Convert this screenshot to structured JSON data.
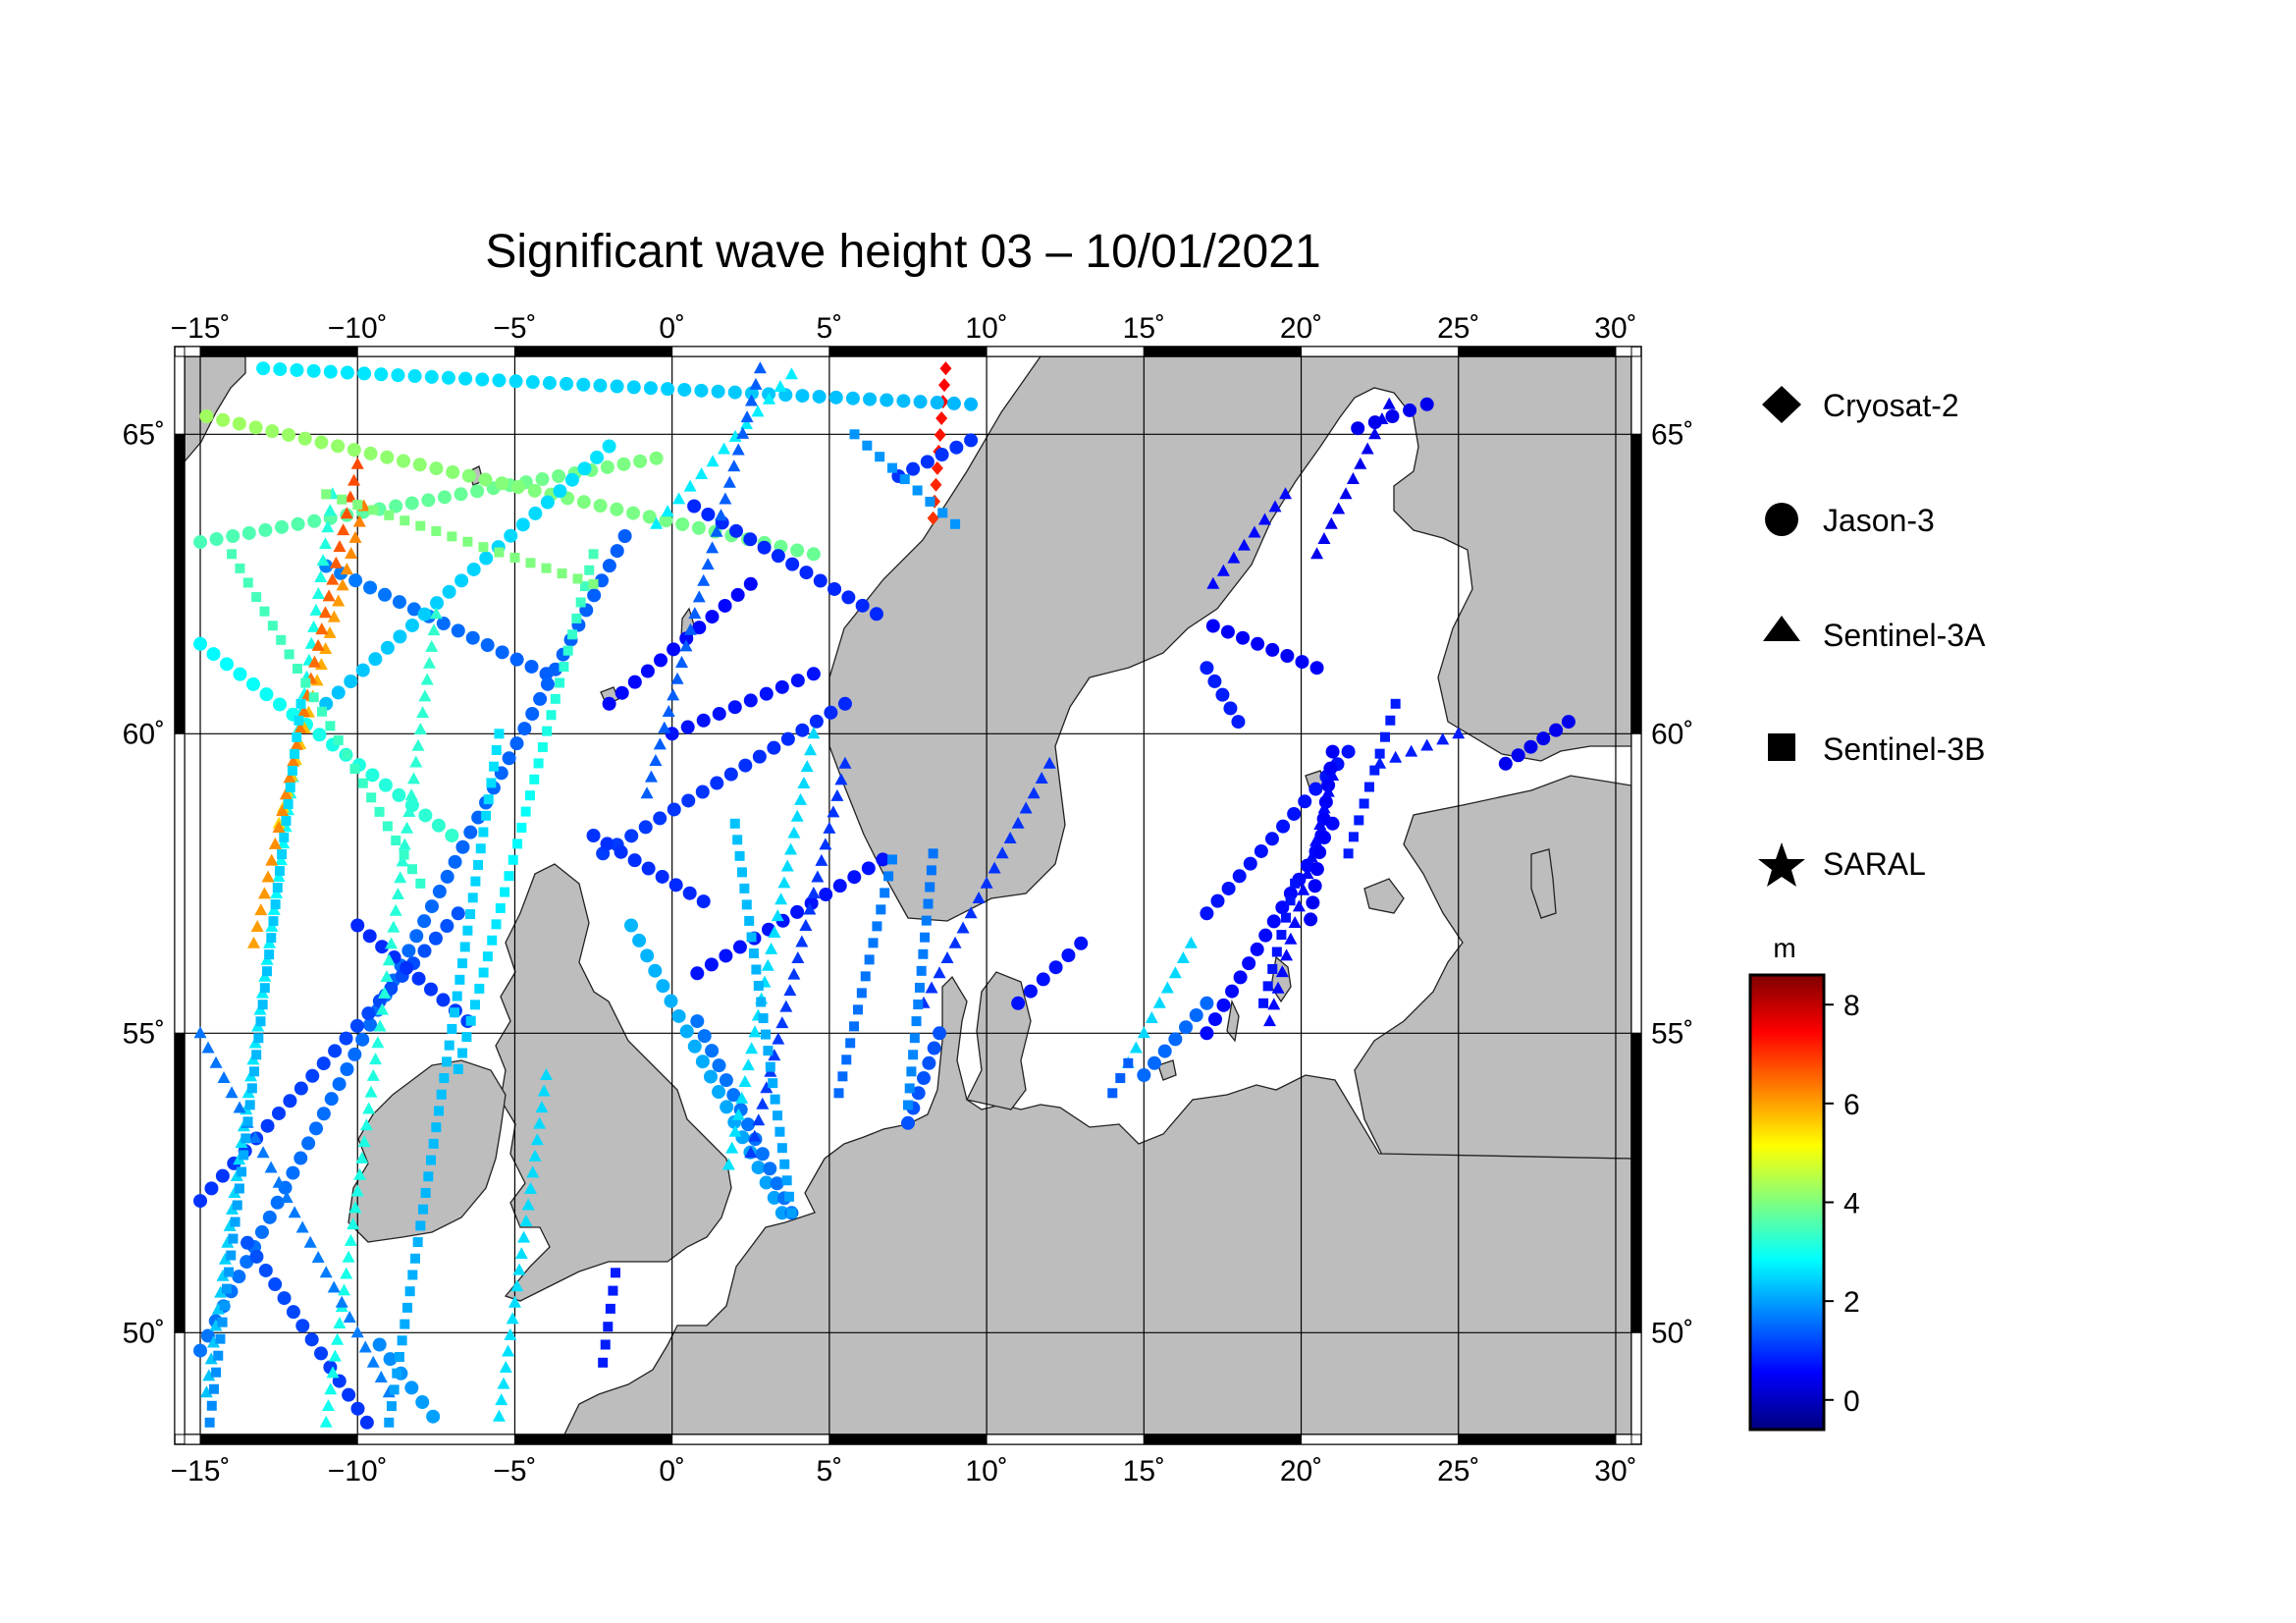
{
  "title": "Significant wave height 03 – 10/01/2021",
  "lon_ticks": [
    {
      "value": -15,
      "label": "−15˚"
    },
    {
      "value": -10,
      "label": "−10˚"
    },
    {
      "value": -5,
      "label": "−5˚"
    },
    {
      "value": 0,
      "label": "0˚"
    },
    {
      "value": 5,
      "label": "5˚"
    },
    {
      "value": 10,
      "label": "10˚"
    },
    {
      "value": 15,
      "label": "15˚"
    },
    {
      "value": 20,
      "label": "20˚"
    },
    {
      "value": 25,
      "label": "25˚"
    },
    {
      "value": 30,
      "label": "30˚"
    }
  ],
  "lat_ticks": [
    {
      "value": 65,
      "label": "65˚"
    },
    {
      "value": 60,
      "label": "60˚"
    },
    {
      "value": 55,
      "label": "55˚"
    },
    {
      "value": 50,
      "label": "50˚"
    }
  ],
  "map_extent": {
    "lon": [
      -15.5,
      30.5
    ],
    "lat": [
      48.3,
      66.3
    ]
  },
  "legend": {
    "items": [
      {
        "label": "Cryosat-2",
        "symbol": "diamond-icon"
      },
      {
        "label": "Jason-3",
        "symbol": "circle-icon"
      },
      {
        "label": "Sentinel-3A",
        "symbol": "triangle-icon"
      },
      {
        "label": "Sentinel-3B",
        "symbol": "square-icon"
      },
      {
        "label": "SARAL",
        "symbol": "star-icon"
      }
    ]
  },
  "colorbar": {
    "unit": "m",
    "min": -0.6,
    "max": 8.6,
    "ticks": [
      {
        "value": 0,
        "label": "0"
      },
      {
        "value": 2,
        "label": "2"
      },
      {
        "value": 4,
        "label": "4"
      },
      {
        "value": 6,
        "label": "6"
      },
      {
        "value": 8,
        "label": "8"
      }
    ],
    "colormap": [
      "#00007f",
      "#0000ff",
      "#007fff",
      "#00ffff",
      "#7fff7f",
      "#ffff00",
      "#ff7f00",
      "#ff0000",
      "#7f0000"
    ]
  },
  "colors": {
    "land": "#bdbdbd",
    "sea": "#ffffff",
    "frame": "#000000",
    "grid": "#000000"
  },
  "tracks": [
    {
      "satellite": "Cryosat-2",
      "from": [
        8.3,
        63.6
      ],
      "to": [
        8.7,
        66.1
      ],
      "hs": [
        7.0,
        7.5
      ]
    },
    {
      "satellite": "Jason-3",
      "from": [
        -15.0,
        61.5
      ],
      "to": [
        -7.0,
        58.3
      ],
      "hs": [
        2.8,
        3.3
      ]
    },
    {
      "satellite": "Jason-3",
      "from": [
        -15.0,
        63.2
      ],
      "to": [
        -0.5,
        64.6
      ],
      "hs": [
        3.5,
        4.0
      ]
    },
    {
      "satellite": "Jason-3",
      "from": [
        -14.8,
        65.3
      ],
      "to": [
        4.5,
        63.0
      ],
      "hs": [
        4.3,
        3.8
      ]
    },
    {
      "satellite": "Jason-3",
      "from": [
        -13.0,
        66.1
      ],
      "to": [
        9.5,
        65.5
      ],
      "hs": [
        2.7,
        2.2
      ]
    },
    {
      "satellite": "Jason-3",
      "from": [
        -11.0,
        62.8
      ],
      "to": [
        -4.0,
        61.0
      ],
      "hs": [
        1.7,
        1.4
      ]
    },
    {
      "satellite": "Jason-3",
      "from": [
        -11.0,
        60.5
      ],
      "to": [
        -2.0,
        64.8
      ],
      "hs": [
        2.3,
        2.6
      ]
    },
    {
      "satellite": "Jason-3",
      "from": [
        -15.0,
        49.7
      ],
      "to": [
        -1.5,
        63.3
      ],
      "hs": [
        1.6,
        1.4
      ]
    },
    {
      "satellite": "Jason-3",
      "from": [
        -15.0,
        52.2
      ],
      "to": [
        -6.8,
        57.0
      ],
      "hs": [
        1.0,
        1.3
      ]
    },
    {
      "satellite": "Jason-3",
      "from": [
        -13.5,
        51.5
      ],
      "to": [
        -9.7,
        48.5
      ],
      "hs": [
        1.3,
        1.0
      ]
    },
    {
      "satellite": "Jason-3",
      "from": [
        -10.0,
        56.8
      ],
      "to": [
        -6.5,
        55.2
      ],
      "hs": [
        0.9,
        1.1
      ]
    },
    {
      "satellite": "Jason-3",
      "from": [
        -9.3,
        49.8
      ],
      "to": [
        -7.6,
        48.6
      ],
      "hs": [
        1.8,
        2.0
      ]
    },
    {
      "satellite": "Jason-3",
      "from": [
        -2.2,
        58.0
      ],
      "to": [
        5.5,
        60.5
      ],
      "hs": [
        1.1,
        0.9
      ]
    },
    {
      "satellite": "Jason-3",
      "from": [
        -1.3,
        56.8
      ],
      "to": [
        3.5,
        52.0
      ],
      "hs": [
        2.2,
        2.0
      ]
    },
    {
      "satellite": "Jason-3",
      "from": [
        0.8,
        55.2
      ],
      "to": [
        3.8,
        52.0
      ],
      "hs": [
        1.6,
        1.6
      ]
    },
    {
      "satellite": "Jason-3",
      "from": [
        -2.5,
        58.3
      ],
      "to": [
        1.0,
        57.2
      ],
      "hs": [
        1.0,
        0.9
      ]
    },
    {
      "satellite": "Jason-3",
      "from": [
        0.8,
        56.0
      ],
      "to": [
        6.7,
        57.9
      ],
      "hs": [
        0.7,
        0.7
      ]
    },
    {
      "satellite": "Jason-3",
      "from": [
        7.5,
        53.5
      ],
      "to": [
        8.5,
        55.0
      ],
      "hs": [
        1.3,
        1.3
      ]
    },
    {
      "satellite": "Jason-3",
      "from": [
        0.7,
        63.8
      ],
      "to": [
        6.5,
        62.0
      ],
      "hs": [
        0.9,
        0.9
      ]
    },
    {
      "satellite": "Jason-3",
      "from": [
        2.5,
        62.5
      ],
      "to": [
        -2.0,
        60.5
      ],
      "hs": [
        0.6,
        0.6
      ]
    },
    {
      "satellite": "Jason-3",
      "from": [
        0.0,
        60.0
      ],
      "to": [
        4.5,
        61.0
      ],
      "hs": [
        0.7,
        0.7
      ]
    },
    {
      "satellite": "Jason-3",
      "from": [
        11.0,
        55.5
      ],
      "to": [
        13.0,
        56.5
      ],
      "hs": [
        0.7,
        0.7
      ]
    },
    {
      "satellite": "Jason-3",
      "from": [
        15.0,
        54.3
      ],
      "to": [
        17.0,
        55.5
      ],
      "hs": [
        1.5,
        1.5
      ]
    },
    {
      "satellite": "Jason-3",
      "from": [
        17.0,
        55.0
      ],
      "to": [
        21.0,
        58.5
      ],
      "hs": [
        0.6,
        0.6
      ]
    },
    {
      "satellite": "Jason-3",
      "from": [
        17.0,
        57.0
      ],
      "to": [
        21.5,
        59.7
      ],
      "hs": [
        0.7,
        0.7
      ]
    },
    {
      "satellite": "Jason-3",
      "from": [
        17.2,
        61.8
      ],
      "to": [
        20.5,
        61.1
      ],
      "hs": [
        0.5,
        0.5
      ]
    },
    {
      "satellite": "Jason-3",
      "from": [
        17.0,
        61.1
      ],
      "to": [
        18.0,
        60.2
      ],
      "hs": [
        0.8,
        0.8
      ]
    },
    {
      "satellite": "Jason-3",
      "from": [
        21.8,
        65.1
      ],
      "to": [
        24.0,
        65.5
      ],
      "hs": [
        0.4,
        0.4
      ]
    },
    {
      "satellite": "Jason-3",
      "from": [
        26.5,
        59.5
      ],
      "to": [
        28.5,
        60.2
      ],
      "hs": [
        0.4,
        0.4
      ]
    },
    {
      "satellite": "Jason-3",
      "from": [
        20.3,
        56.9
      ],
      "to": [
        21.0,
        59.7
      ],
      "hs": [
        0.5,
        0.5
      ]
    },
    {
      "satellite": "Jason-3",
      "from": [
        7.2,
        64.3
      ],
      "to": [
        9.5,
        64.9
      ],
      "hs": [
        1.0,
        1.0
      ]
    },
    {
      "satellite": "Sentinel-3A",
      "from": [
        -14.8,
        49.0
      ],
      "to": [
        -10.8,
        64.0
      ],
      "hs": [
        2.3,
        3.2
      ]
    },
    {
      "satellite": "Sentinel-3A",
      "from": [
        -11.0,
        48.5
      ],
      "to": [
        -7.5,
        62.0
      ],
      "hs": [
        3.0,
        3.3
      ]
    },
    {
      "satellite": "Sentinel-3A",
      "from": [
        -12.5,
        58.5
      ],
      "to": [
        -9.8,
        63.8
      ],
      "hs": [
        5.5,
        6.3
      ]
    },
    {
      "satellite": "Sentinel-3A",
      "from": [
        -13.3,
        56.5
      ],
      "to": [
        -10.0,
        64.5
      ],
      "hs": [
        6.0,
        6.8
      ]
    },
    {
      "satellite": "Sentinel-3A",
      "from": [
        -15.0,
        55.0
      ],
      "to": [
        -9.0,
        49.0
      ],
      "hs": [
        1.6,
        1.7
      ]
    },
    {
      "satellite": "Sentinel-3A",
      "from": [
        -5.5,
        48.6
      ],
      "to": [
        -4.0,
        54.3
      ],
      "hs": [
        2.6,
        2.5
      ]
    },
    {
      "satellite": "Sentinel-3A",
      "from": [
        1.8,
        52.8
      ],
      "to": [
        4.5,
        60.0
      ],
      "hs": [
        2.6,
        2.5
      ]
    },
    {
      "satellite": "Sentinel-3A",
      "from": [
        2.5,
        53.0
      ],
      "to": [
        5.5,
        59.5
      ],
      "hs": [
        1.1,
        1.0
      ]
    },
    {
      "satellite": "Sentinel-3A",
      "from": [
        -0.5,
        63.5
      ],
      "to": [
        3.8,
        66.0
      ],
      "hs": [
        2.7,
        2.7
      ]
    },
    {
      "satellite": "Sentinel-3A",
      "from": [
        -0.8,
        59.0
      ],
      "to": [
        2.8,
        66.1
      ],
      "hs": [
        1.4,
        1.4
      ]
    },
    {
      "satellite": "Sentinel-3A",
      "from": [
        8.0,
        55.5
      ],
      "to": [
        12.0,
        59.5
      ],
      "hs": [
        1.0,
        1.0
      ]
    },
    {
      "satellite": "Sentinel-3A",
      "from": [
        14.5,
        54.5
      ],
      "to": [
        16.5,
        56.5
      ],
      "hs": [
        2.5,
        2.5
      ]
    },
    {
      "satellite": "Sentinel-3A",
      "from": [
        17.2,
        62.5
      ],
      "to": [
        19.5,
        64.0
      ],
      "hs": [
        0.6,
        0.6
      ]
    },
    {
      "satellite": "Sentinel-3A",
      "from": [
        20.5,
        63.0
      ],
      "to": [
        22.8,
        65.5
      ],
      "hs": [
        0.4,
        0.4
      ]
    },
    {
      "satellite": "Sentinel-3A",
      "from": [
        19.0,
        55.2
      ],
      "to": [
        21.0,
        59.3
      ],
      "hs": [
        0.6,
        0.6
      ]
    },
    {
      "satellite": "Sentinel-3A",
      "from": [
        22.5,
        59.5
      ],
      "to": [
        25.0,
        60.0
      ],
      "hs": [
        0.8,
        0.8
      ]
    },
    {
      "satellite": "Sentinel-3B",
      "from": [
        -14.7,
        48.5
      ],
      "to": [
        -11.8,
        60.5
      ],
      "hs": [
        1.8,
        2.6
      ]
    },
    {
      "satellite": "Sentinel-3B",
      "from": [
        -9.0,
        48.5
      ],
      "to": [
        -5.5,
        60.0
      ],
      "hs": [
        2.0,
        2.6
      ]
    },
    {
      "satellite": "Sentinel-3B",
      "from": [
        -6.8,
        54.4
      ],
      "to": [
        -2.5,
        63.0
      ],
      "hs": [
        2.3,
        3.5
      ]
    },
    {
      "satellite": "Sentinel-3B",
      "from": [
        -11.0,
        64.0
      ],
      "to": [
        -2.5,
        62.5
      ],
      "hs": [
        4.0,
        4.0
      ]
    },
    {
      "satellite": "Sentinel-3B",
      "from": [
        -8.0,
        57.5
      ],
      "to": [
        -14.0,
        63.0
      ],
      "hs": [
        3.3,
        3.5
      ]
    },
    {
      "satellite": "Sentinel-3B",
      "from": [
        -2.2,
        49.5
      ],
      "to": [
        -1.8,
        51.0
      ],
      "hs": [
        0.8,
        0.8
      ]
    },
    {
      "satellite": "Sentinel-3B",
      "from": [
        3.8,
        52.0
      ],
      "to": [
        2.0,
        58.5
      ],
      "hs": [
        2.0,
        2.3
      ]
    },
    {
      "satellite": "Sentinel-3B",
      "from": [
        5.3,
        54.0
      ],
      "to": [
        7.0,
        57.9
      ],
      "hs": [
        1.5,
        1.7
      ]
    },
    {
      "satellite": "Sentinel-3B",
      "from": [
        7.5,
        53.8
      ],
      "to": [
        8.3,
        58.0
      ],
      "hs": [
        1.8,
        1.6
      ]
    },
    {
      "satellite": "Sentinel-3B",
      "from": [
        5.8,
        65.0
      ],
      "to": [
        9.0,
        63.5
      ],
      "hs": [
        1.9,
        1.9
      ]
    },
    {
      "satellite": "Sentinel-3B",
      "from": [
        14.5,
        54.5
      ],
      "to": [
        14.0,
        54.0
      ],
      "hs": [
        1.4,
        1.4
      ]
    },
    {
      "satellite": "Sentinel-3B",
      "from": [
        18.8,
        55.5
      ],
      "to": [
        19.8,
        57.5
      ],
      "hs": [
        0.7,
        0.7
      ]
    },
    {
      "satellite": "Sentinel-3B",
      "from": [
        21.5,
        58.0
      ],
      "to": [
        23.0,
        60.5
      ],
      "hs": [
        0.8,
        0.8
      ]
    }
  ]
}
